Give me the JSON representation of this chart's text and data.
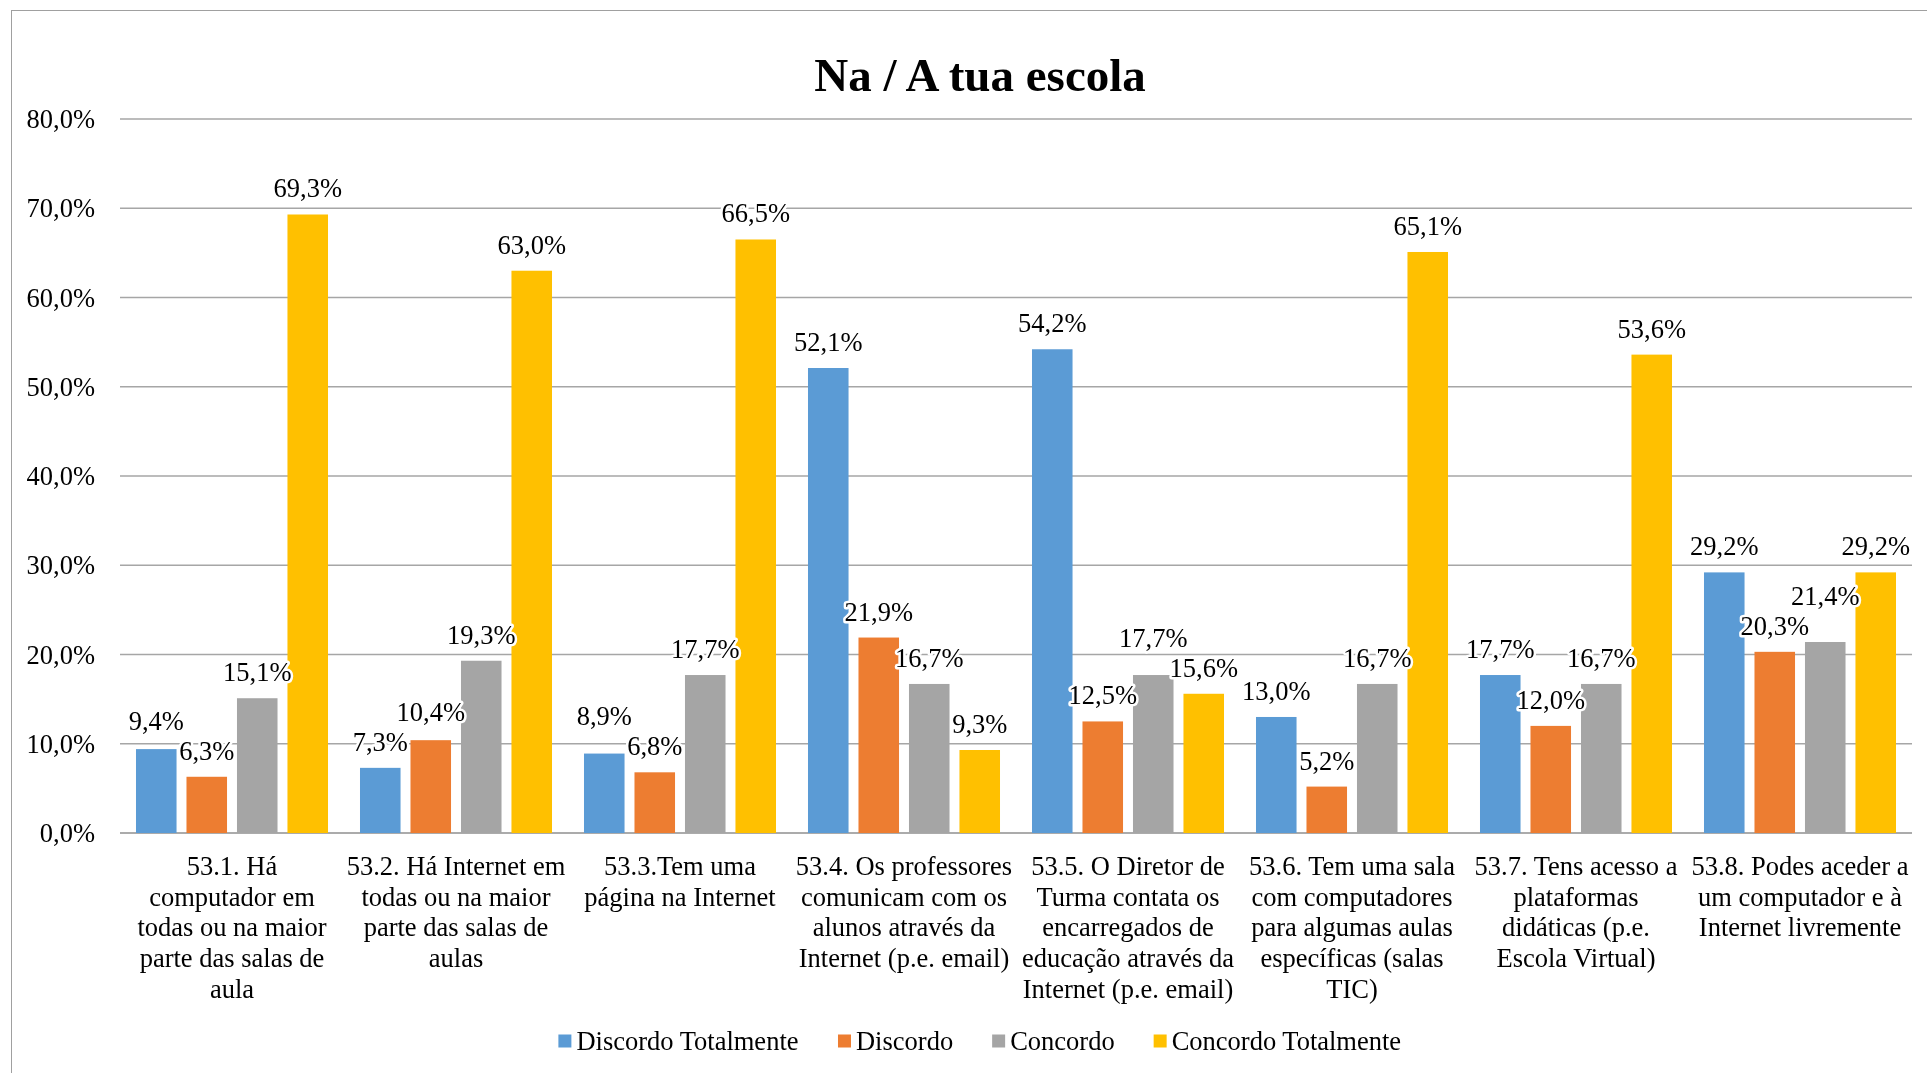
{
  "chart_data": {
    "type": "bar",
    "title": "Na / A tua escola",
    "categories": [
      "53.1. Há computador em todas ou na maior parte das salas de aula",
      "53.2. Há Internet em todas ou na maior parte das salas de aulas",
      "53.3.Tem uma página na Internet",
      "53.4. Os professores comunicam com os alunos através da Internet (p.e. email)",
      "53.5. O Diretor de Turma contata os encarregados de educação através da Internet (p.e. email)",
      "53.6. Tem uma sala com computadores para algumas aulas específicas (salas TIC)",
      "53.7. Tens acesso a plataformas didáticas (p.e. Escola Virtual)",
      "53.8. Podes aceder a um computador e à Internet livremente"
    ],
    "series": [
      {
        "name": "Discordo Totalmente",
        "color": "#5b9bd5",
        "values": [
          9.4,
          7.3,
          8.9,
          52.1,
          54.2,
          13.0,
          17.7,
          29.2
        ],
        "value_labels": [
          "9,4%",
          "7,3%",
          "8,9%",
          "52,1%",
          "54,2%",
          "13,0%",
          "17,7%",
          "29,2%"
        ]
      },
      {
        "name": "Discordo",
        "color": "#ed7d31",
        "values": [
          6.3,
          10.4,
          6.8,
          21.9,
          12.5,
          5.2,
          12.0,
          20.3
        ],
        "value_labels": [
          "6,3%",
          "10,4%",
          "6,8%",
          "21,9%",
          "12,5%",
          "5,2%",
          "12,0%",
          "20,3%"
        ]
      },
      {
        "name": "Concordo",
        "color": "#a5a5a5",
        "values": [
          15.1,
          19.3,
          17.7,
          16.7,
          17.7,
          16.7,
          16.7,
          21.4
        ],
        "value_labels": [
          "15,1%",
          "19,3%",
          "17,7%",
          "16,7%",
          "17,7%",
          "16,7%",
          "16,7%",
          "21,4%"
        ]
      },
      {
        "name": "Concordo Totalmente",
        "color": "#ffc000",
        "values": [
          69.3,
          63.0,
          66.5,
          9.3,
          15.6,
          65.1,
          53.6,
          29.2
        ],
        "value_labels": [
          "69,3%",
          "63,0%",
          "66,5%",
          "9,3%",
          "15,6%",
          "65,1%",
          "53,6%",
          "29,2%"
        ]
      }
    ],
    "ylim": [
      0,
      80
    ],
    "yticks": [
      {
        "value": 0,
        "label": "0,0%"
      },
      {
        "value": 10,
        "label": "10,0%"
      },
      {
        "value": 20,
        "label": "20,0%"
      },
      {
        "value": 30,
        "label": "30,0%"
      },
      {
        "value": 40,
        "label": "40,0%"
      },
      {
        "value": 50,
        "label": "50,0%"
      },
      {
        "value": 60,
        "label": "60,0%"
      },
      {
        "value": 70,
        "label": "70,0%"
      },
      {
        "value": 80,
        "label": "80,0%"
      }
    ],
    "grid": "y",
    "legend": "bottom"
  }
}
